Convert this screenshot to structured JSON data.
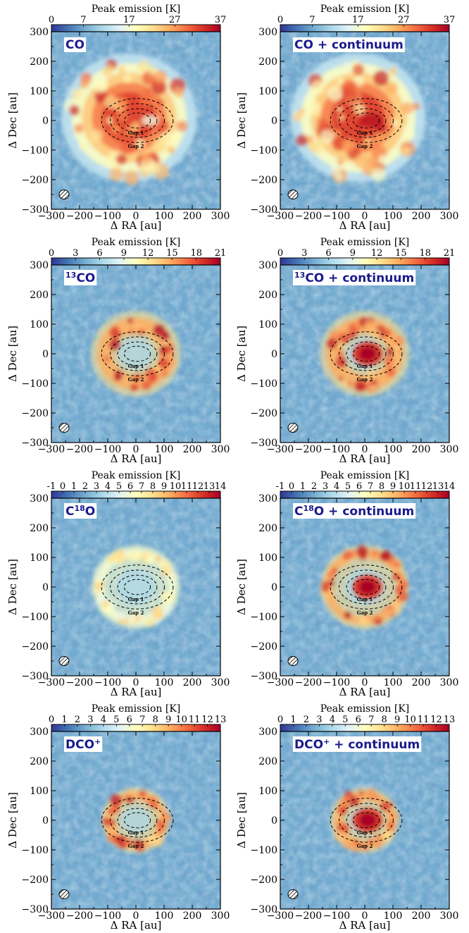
{
  "colormap": [
    "#313695",
    "#4575b4",
    "#74add1",
    "#abd9e9",
    "#e0f3f8",
    "#ffffbf",
    "#fee090",
    "#fdae61",
    "#f46d43",
    "#d73027",
    "#a50026"
  ],
  "colorbar_label": "Peak emission [K]",
  "chart_data": [
    {
      "type": "heatmap",
      "molecule": "CO",
      "molecule_sup": "",
      "molecule_pre": "",
      "title": "CO",
      "xlabel": "Δ RA [au]",
      "ylabel": "Δ Dec [au]",
      "xlim": [
        -300,
        300
      ],
      "ylim": [
        -300,
        300
      ],
      "xticks": [
        -300,
        -200,
        -100,
        0,
        100,
        200,
        300
      ],
      "yticks": [
        300,
        200,
        100,
        0,
        -100,
        -200,
        -300
      ],
      "colorbar": {
        "label": "Peak emission [K]",
        "range": [
          0,
          37
        ],
        "ticks": [
          0,
          7,
          17,
          27,
          37
        ]
      },
      "annotations": [
        "Gap 1",
        "Gap 2"
      ],
      "beam": "hatched ellipse, bottom-left",
      "morphology": {
        "peak_K": 37,
        "extent_au": 240,
        "offset_x_au": -60,
        "central_hole_au": 30,
        "central_source": false
      }
    },
    {
      "type": "heatmap",
      "molecule": "CO + continuum",
      "molecule_sup": "",
      "molecule_pre": "",
      "title": "CO + continuum",
      "xlabel": "Δ RA [au]",
      "ylabel": "Δ Dec [au]",
      "xlim": [
        -300,
        300
      ],
      "ylim": [
        -300,
        300
      ],
      "xticks": [
        -300,
        -200,
        -100,
        0,
        100,
        200,
        300
      ],
      "yticks": [
        300,
        200,
        100,
        0,
        -100,
        -200,
        -300
      ],
      "colorbar": {
        "label": "Peak emission [K]",
        "range": [
          0,
          37
        ],
        "ticks": [
          0,
          7,
          17,
          27,
          37
        ]
      },
      "annotations": [
        "Gap 1",
        "Gap 2"
      ],
      "beam": "hatched ellipse, bottom-left",
      "morphology": {
        "peak_K": 37,
        "extent_au": 240,
        "offset_x_au": -60,
        "central_hole_au": 0,
        "central_source": true
      }
    },
    {
      "type": "heatmap",
      "molecule": "CO",
      "molecule_sup": "",
      "molecule_pre": "13",
      "title": "13CO",
      "xlabel": "Δ RA [au]",
      "ylabel": "Δ Dec [au]",
      "xlim": [
        -300,
        300
      ],
      "ylim": [
        -300,
        300
      ],
      "xticks": [
        -300,
        -200,
        -100,
        0,
        100,
        200,
        300
      ],
      "yticks": [
        300,
        200,
        100,
        0,
        -100,
        -200,
        -300
      ],
      "colorbar": {
        "label": "Peak emission [K]",
        "range": [
          0,
          21
        ],
        "ticks": [
          0,
          3,
          6,
          9,
          12,
          15,
          18,
          21
        ]
      },
      "annotations": [
        "Gap 1",
        "Gap 2"
      ],
      "beam": "hatched ellipse, bottom-left",
      "morphology": {
        "peak_K": 21,
        "ring_radius_au": 110,
        "ring_width_au": 55,
        "central_source": false
      }
    },
    {
      "type": "heatmap",
      "molecule": "CO + continuum",
      "molecule_sup": "",
      "molecule_pre": "13",
      "title": "13CO + continuum",
      "xlabel": "Δ RA [au]",
      "ylabel": "Δ Dec [au]",
      "xlim": [
        -300,
        300
      ],
      "ylim": [
        -300,
        300
      ],
      "xticks": [
        -300,
        -200,
        -100,
        0,
        100,
        200,
        300
      ],
      "yticks": [
        300,
        200,
        100,
        0,
        -100,
        -200,
        -300
      ],
      "colorbar": {
        "label": "Peak emission [K]",
        "range": [
          0,
          21
        ],
        "ticks": [
          0,
          3,
          6,
          9,
          12,
          15,
          18,
          21
        ]
      },
      "annotations": [
        "Gap 1",
        "Gap 2"
      ],
      "beam": "hatched ellipse, bottom-left",
      "morphology": {
        "peak_K": 21,
        "ring_radius_au": 110,
        "ring_width_au": 55,
        "central_source": true
      }
    },
    {
      "type": "heatmap",
      "molecule": "O",
      "molecule_sup": "18",
      "molecule_pre": "C",
      "title": "C18O",
      "xlabel": "Δ RA [au]",
      "ylabel": "Δ Dec [au]",
      "xlim": [
        -300,
        300
      ],
      "ylim": [
        -300,
        300
      ],
      "xticks": [
        -300,
        -200,
        -100,
        0,
        100,
        200,
        300
      ],
      "yticks": [
        300,
        200,
        100,
        0,
        -100,
        -200,
        -300
      ],
      "colorbar": {
        "label": "Peak emission [K]",
        "range": [
          -1,
          14
        ],
        "ticks": [
          -1,
          0,
          1,
          2,
          3,
          4,
          5,
          6,
          7,
          8,
          9,
          10,
          11,
          12,
          13,
          14
        ]
      },
      "annotations": [
        "Gap 1",
        "Gap 2"
      ],
      "beam": "hatched ellipse, bottom-left",
      "morphology": {
        "peak_K": 9,
        "ring_radius_au": 130,
        "ring_width_au": 30,
        "central_source": false
      }
    },
    {
      "type": "heatmap",
      "molecule": "O + continuum",
      "molecule_sup": "18",
      "molecule_pre": "C",
      "title": "C18O + continuum",
      "xlabel": "Δ RA [au]",
      "ylabel": "Δ Dec [au]",
      "xlim": [
        -300,
        300
      ],
      "ylim": [
        -300,
        300
      ],
      "xticks": [
        -300,
        -200,
        -100,
        0,
        100,
        200,
        300
      ],
      "yticks": [
        300,
        200,
        100,
        0,
        -100,
        -200,
        -300
      ],
      "colorbar": {
        "label": "Peak emission [K]",
        "range": [
          -1,
          14
        ],
        "ticks": [
          -1,
          0,
          1,
          2,
          3,
          4,
          5,
          6,
          7,
          8,
          9,
          10,
          11,
          12,
          13,
          14
        ]
      },
      "annotations": [
        "Gap 1",
        "Gap 2"
      ],
      "beam": "hatched ellipse, bottom-left",
      "morphology": {
        "peak_K": 14,
        "ring_radius_au": 130,
        "ring_width_au": 30,
        "central_source": true
      }
    },
    {
      "type": "heatmap",
      "molecule": "DCO",
      "molecule_sup": "+",
      "molecule_pre": "",
      "title": "DCO+",
      "xlabel": "Δ RA [au]",
      "ylabel": "Δ Dec [au]",
      "xlim": [
        -300,
        300
      ],
      "ylim": [
        -300,
        300
      ],
      "xticks": [
        -300,
        -200,
        -100,
        0,
        100,
        200,
        300
      ],
      "yticks": [
        300,
        200,
        100,
        0,
        -100,
        -200,
        -300
      ],
      "colorbar": {
        "label": "Peak emission [K]",
        "range": [
          0,
          13
        ],
        "ticks": [
          0,
          1,
          2,
          3,
          4,
          5,
          6,
          7,
          8,
          9,
          10,
          11,
          12,
          13
        ]
      },
      "annotations": [
        "Gap 1",
        "Gap 2"
      ],
      "beam": "hatched ellipse, bottom-left",
      "morphology": {
        "peak_K": 13,
        "ring_radius_au": 95,
        "ring_width_au": 30,
        "central_source": false
      }
    },
    {
      "type": "heatmap",
      "molecule": "DCO",
      "molecule_sup": "+",
      "molecule_suffix": " + continuum",
      "molecule_pre": "",
      "title": "DCO+ + continuum",
      "xlabel": "Δ RA [au]",
      "ylabel": "Δ Dec [au]",
      "xlim": [
        -300,
        300
      ],
      "ylim": [
        -300,
        300
      ],
      "xticks": [
        -300,
        -200,
        -100,
        0,
        100,
        200,
        300
      ],
      "yticks": [
        300,
        200,
        100,
        0,
        -100,
        -200,
        -300
      ],
      "colorbar": {
        "label": "Peak emission [K]",
        "range": [
          0,
          13
        ],
        "ticks": [
          0,
          1,
          2,
          3,
          4,
          5,
          6,
          7,
          8,
          9,
          10,
          11,
          12,
          13
        ]
      },
      "annotations": [
        "Gap 1",
        "Gap 2"
      ],
      "beam": "hatched ellipse, bottom-left",
      "morphology": {
        "peak_K": 13,
        "ring_radius_au": 95,
        "ring_width_au": 30,
        "central_source": true
      }
    }
  ]
}
